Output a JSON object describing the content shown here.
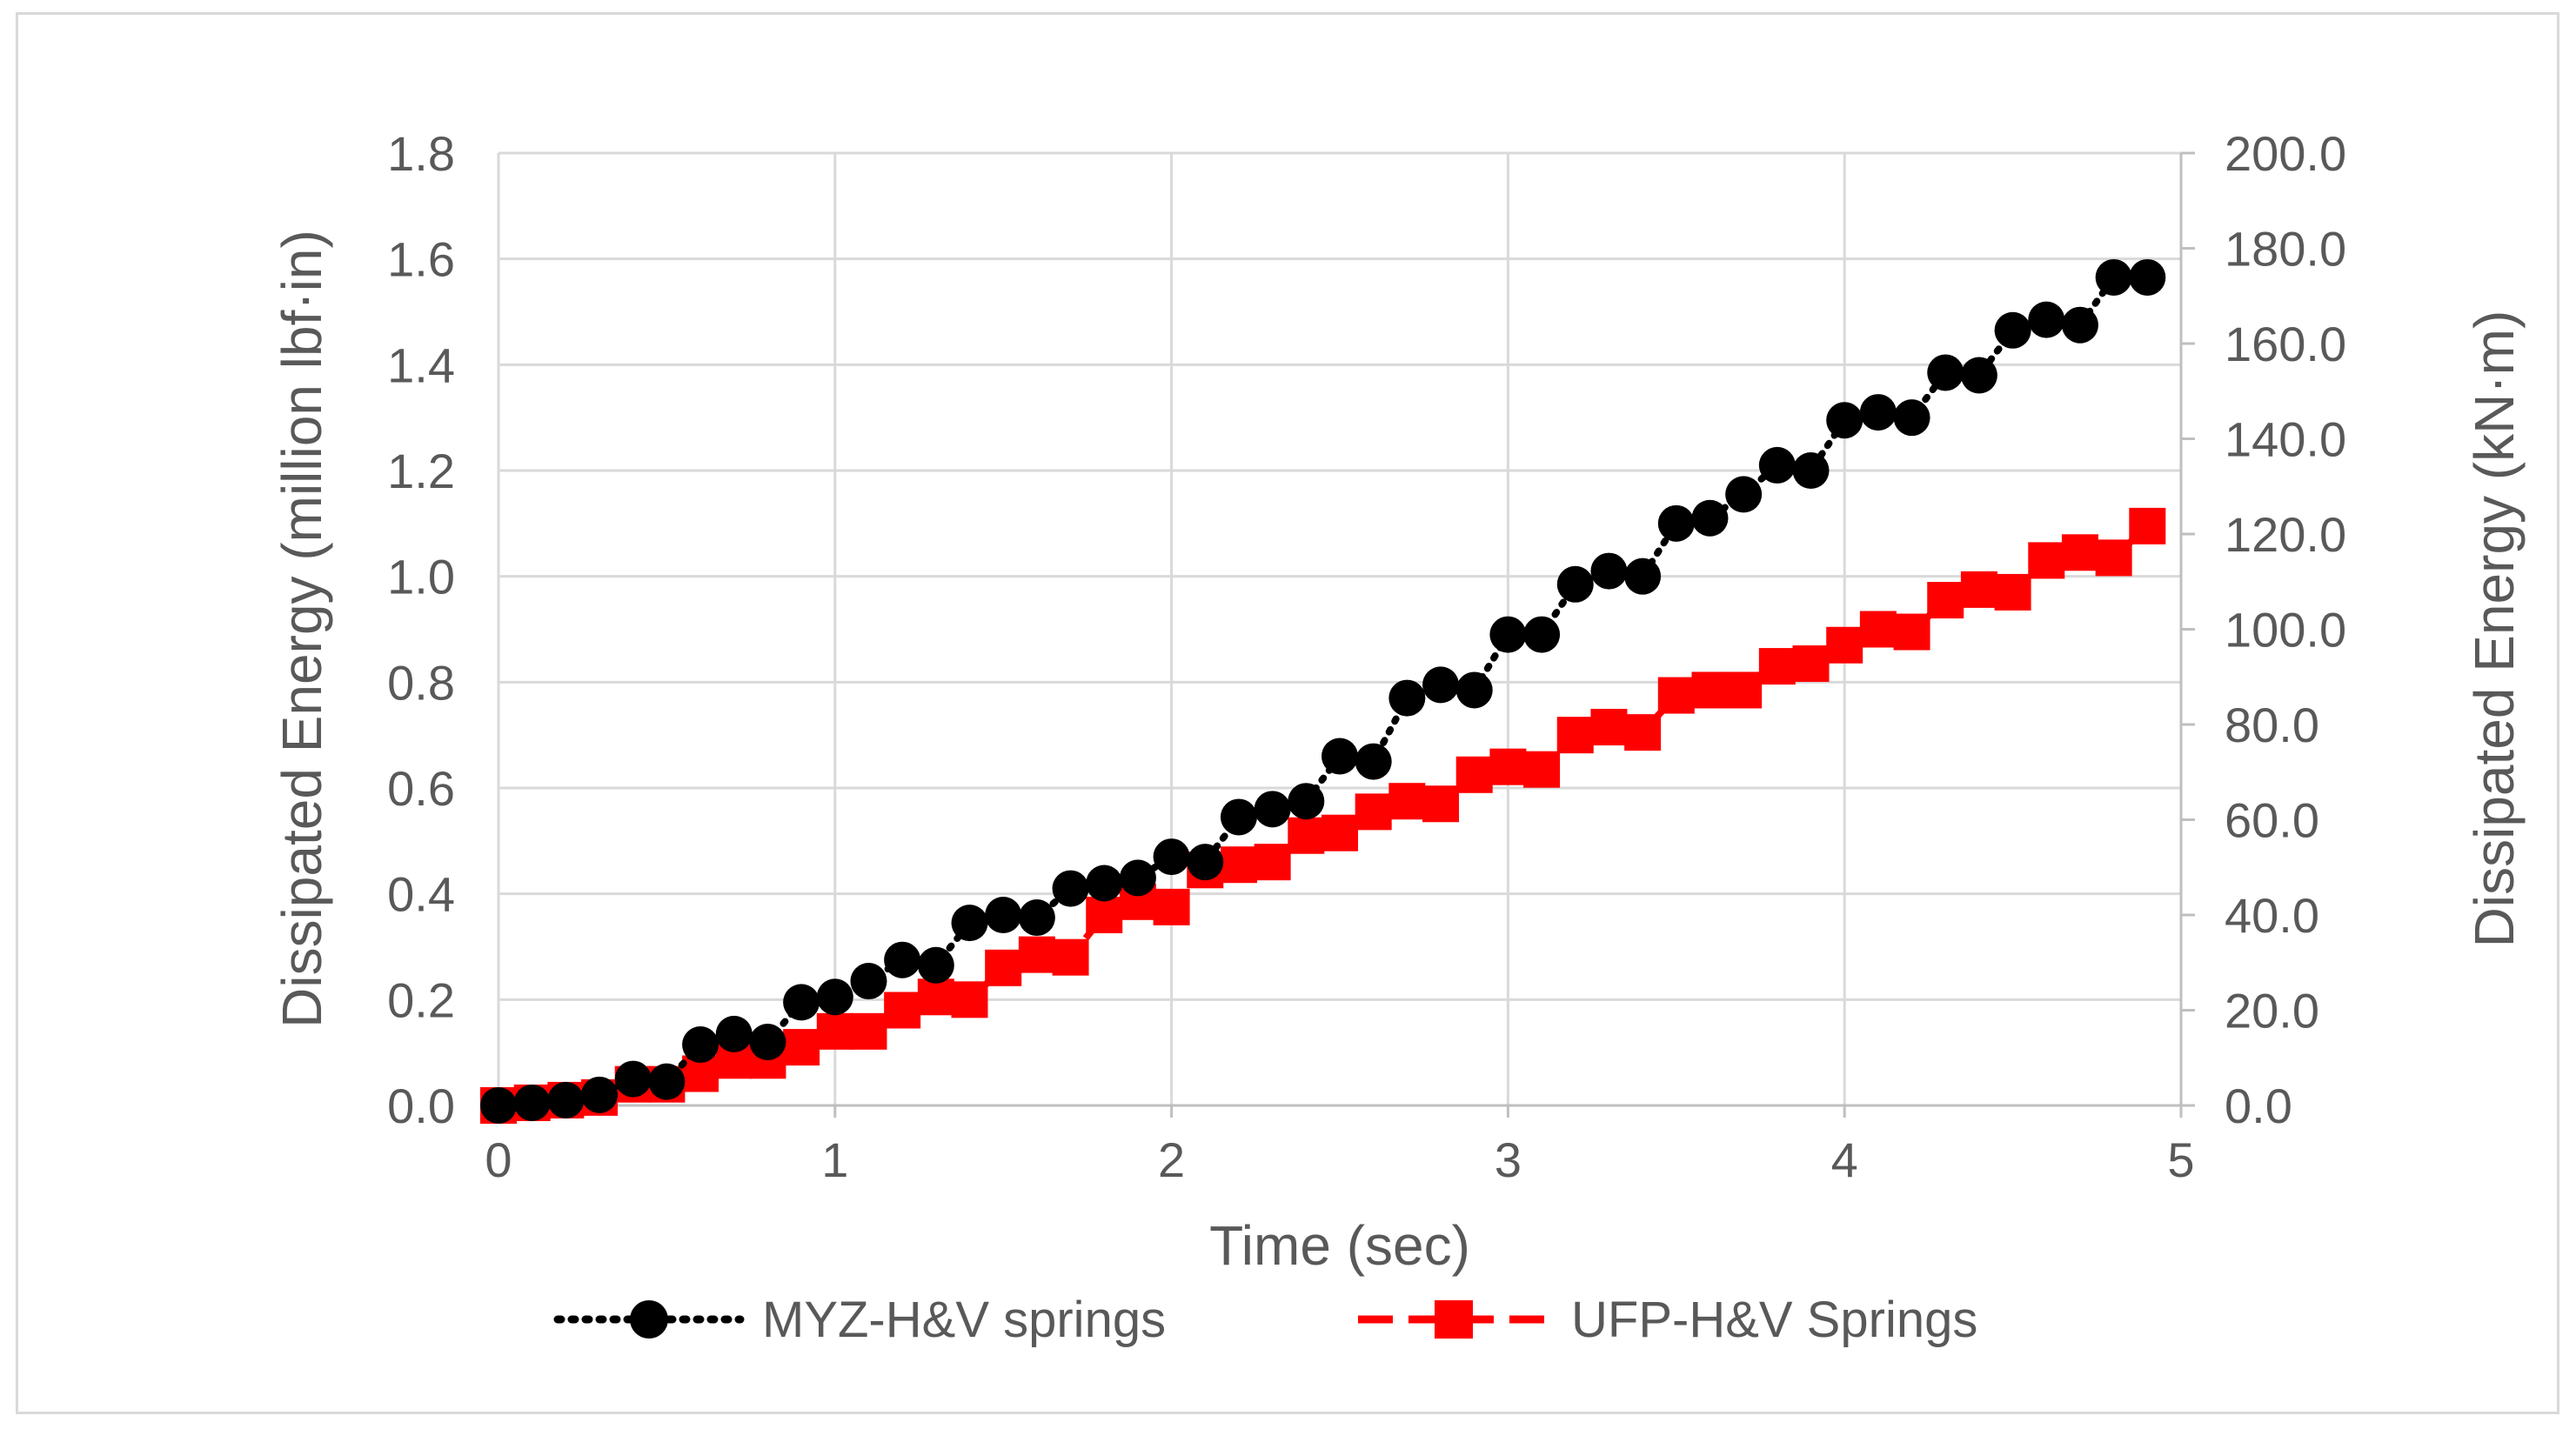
{
  "chart_data": {
    "type": "scatter",
    "title": "",
    "xlabel": "Time (sec)",
    "ylabel": "Dissipated Energy (million lbf·in)",
    "y2label": "Dissipated Energy (kN·m)",
    "xlim": [
      0,
      5
    ],
    "ylim": [
      0,
      1.8
    ],
    "y2lim": [
      0,
      200
    ],
    "x_ticks": [
      "0",
      "1",
      "2",
      "3",
      "4",
      "5"
    ],
    "y_ticks": [
      "0.0",
      "0.2",
      "0.4",
      "0.6",
      "0.8",
      "1.0",
      "1.2",
      "1.4",
      "1.6",
      "1.8"
    ],
    "y2_ticks": [
      "0.0",
      "20.0",
      "40.0",
      "60.0",
      "80.0",
      "100.0",
      "120.0",
      "140.0",
      "160.0",
      "180.0",
      "200.0"
    ],
    "grid": true,
    "legend_position": "bottom",
    "series": [
      {
        "name": "MYZ-H&V springs",
        "color": "#000000",
        "marker": "circle",
        "line_style": "dotted",
        "x": [
          0,
          0.1,
          0.2,
          0.3,
          0.4,
          0.5,
          0.6,
          0.7,
          0.8,
          0.9,
          1.0,
          1.1,
          1.2,
          1.3,
          1.4,
          1.5,
          1.6,
          1.7,
          1.8,
          1.9,
          2.0,
          2.1,
          2.2,
          2.3,
          2.4,
          2.5,
          2.6,
          2.7,
          2.8,
          2.9,
          3.0,
          3.1,
          3.2,
          3.3,
          3.4,
          3.5,
          3.6,
          3.7,
          3.8,
          3.9,
          4.0,
          4.1,
          4.2,
          4.3,
          4.4,
          4.5,
          4.6,
          4.7,
          4.8,
          4.9
        ],
        "y": [
          0.0,
          0.005,
          0.01,
          0.02,
          0.05,
          0.045,
          0.115,
          0.135,
          0.12,
          0.195,
          0.205,
          0.235,
          0.275,
          0.265,
          0.345,
          0.36,
          0.355,
          0.41,
          0.42,
          0.43,
          0.47,
          0.46,
          0.545,
          0.56,
          0.575,
          0.66,
          0.65,
          0.77,
          0.795,
          0.785,
          0.89,
          0.89,
          0.985,
          1.01,
          1.0,
          1.1,
          1.11,
          1.155,
          1.21,
          1.2,
          1.295,
          1.31,
          1.3,
          1.385,
          1.38,
          1.465,
          1.485,
          1.475,
          1.565,
          1.565
        ]
      },
      {
        "name": "UFP-H&V Springs",
        "color": "#ff0000",
        "marker": "square",
        "line_style": "dashed",
        "x": [
          0,
          0.1,
          0.2,
          0.3,
          0.4,
          0.5,
          0.6,
          0.7,
          0.8,
          0.9,
          1.0,
          1.1,
          1.2,
          1.3,
          1.4,
          1.5,
          1.6,
          1.7,
          1.8,
          1.9,
          2.0,
          2.1,
          2.2,
          2.3,
          2.4,
          2.5,
          2.6,
          2.7,
          2.8,
          2.9,
          3.0,
          3.1,
          3.2,
          3.3,
          3.4,
          3.5,
          3.6,
          3.7,
          3.8,
          3.9,
          4.0,
          4.1,
          4.2,
          4.3,
          4.4,
          4.5,
          4.6,
          4.7,
          4.8,
          4.9
        ],
        "y": [
          0.0,
          0.005,
          0.01,
          0.015,
          0.04,
          0.04,
          0.06,
          0.085,
          0.085,
          0.11,
          0.14,
          0.14,
          0.18,
          0.205,
          0.2,
          0.26,
          0.285,
          0.28,
          0.36,
          0.385,
          0.375,
          0.445,
          0.455,
          0.46,
          0.51,
          0.515,
          0.555,
          0.575,
          0.57,
          0.625,
          0.64,
          0.635,
          0.7,
          0.715,
          0.705,
          0.775,
          0.785,
          0.785,
          0.83,
          0.835,
          0.87,
          0.9,
          0.895,
          0.955,
          0.975,
          0.97,
          1.03,
          1.045,
          1.035,
          1.095
        ]
      }
    ]
  }
}
